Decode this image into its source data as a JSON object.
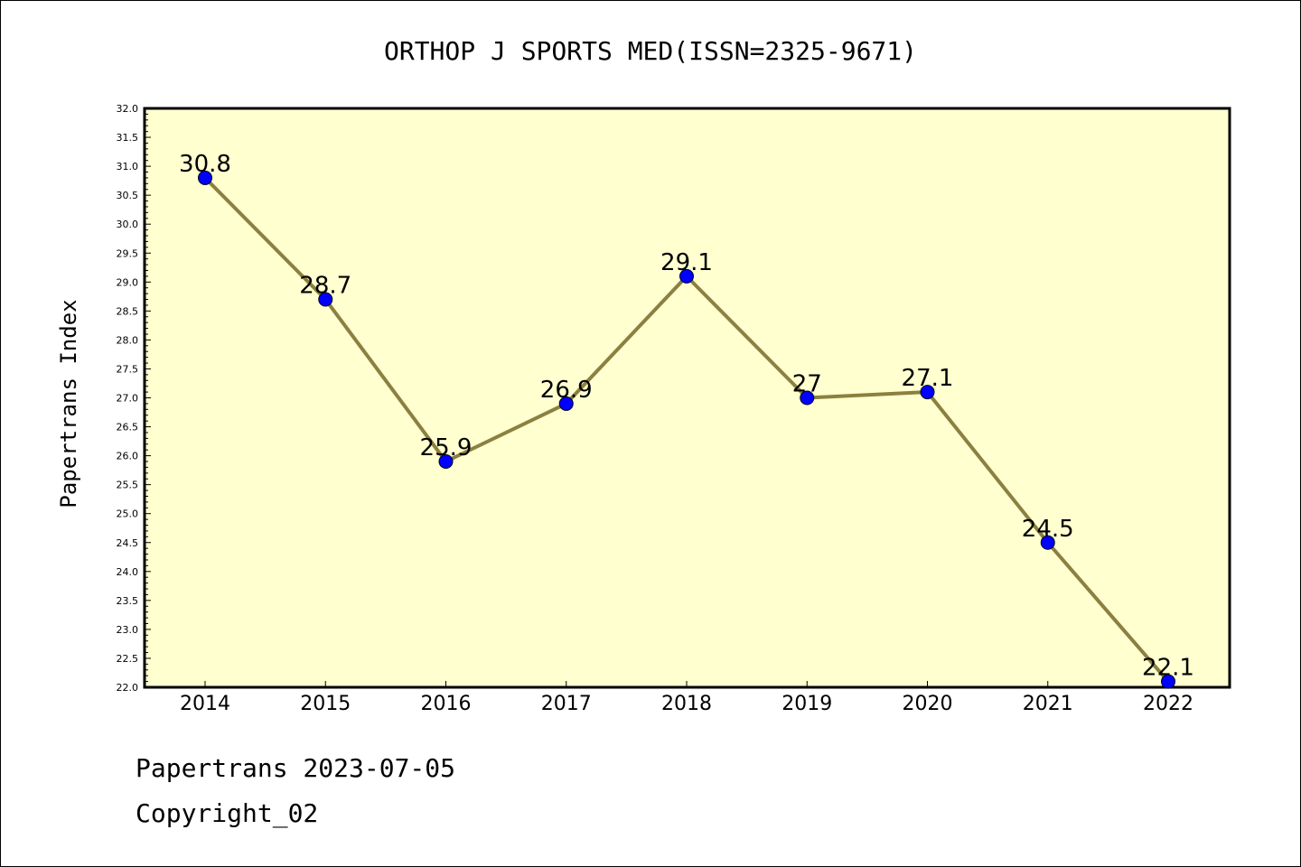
{
  "chart_data": {
    "type": "line",
    "title": "ORTHOP J SPORTS MED(ISSN=2325-9671)",
    "xlabel": "",
    "ylabel": "Papertrans Index",
    "categories": [
      "2014",
      "2015",
      "2016",
      "2017",
      "2018",
      "2019",
      "2020",
      "2021",
      "2022"
    ],
    "values": [
      30.8,
      28.7,
      25.9,
      26.9,
      29.1,
      27,
      27.1,
      24.5,
      22.1
    ],
    "data_labels": [
      "30.8",
      "28.7",
      "25.9",
      "26.9",
      "29.1",
      "27",
      "27.1",
      "24.5",
      "22.1"
    ],
    "ylim": [
      22.0,
      32.0
    ],
    "yticks": [
      "22.0",
      "22.5",
      "23.0",
      "23.5",
      "24.0",
      "24.5",
      "25.0",
      "25.5",
      "26.0",
      "26.5",
      "27.0",
      "27.5",
      "28.0",
      "28.5",
      "29.0",
      "29.5",
      "30.0",
      "30.5",
      "31.0",
      "31.5",
      "32.0"
    ],
    "grid": false,
    "colors": {
      "plot_background": "#ffffd0",
      "line": "#8b8040",
      "marker": "#0000ff"
    }
  },
  "footer": {
    "date_line": "Papertrans 2023-07-05",
    "copyright": "Copyright_02"
  }
}
